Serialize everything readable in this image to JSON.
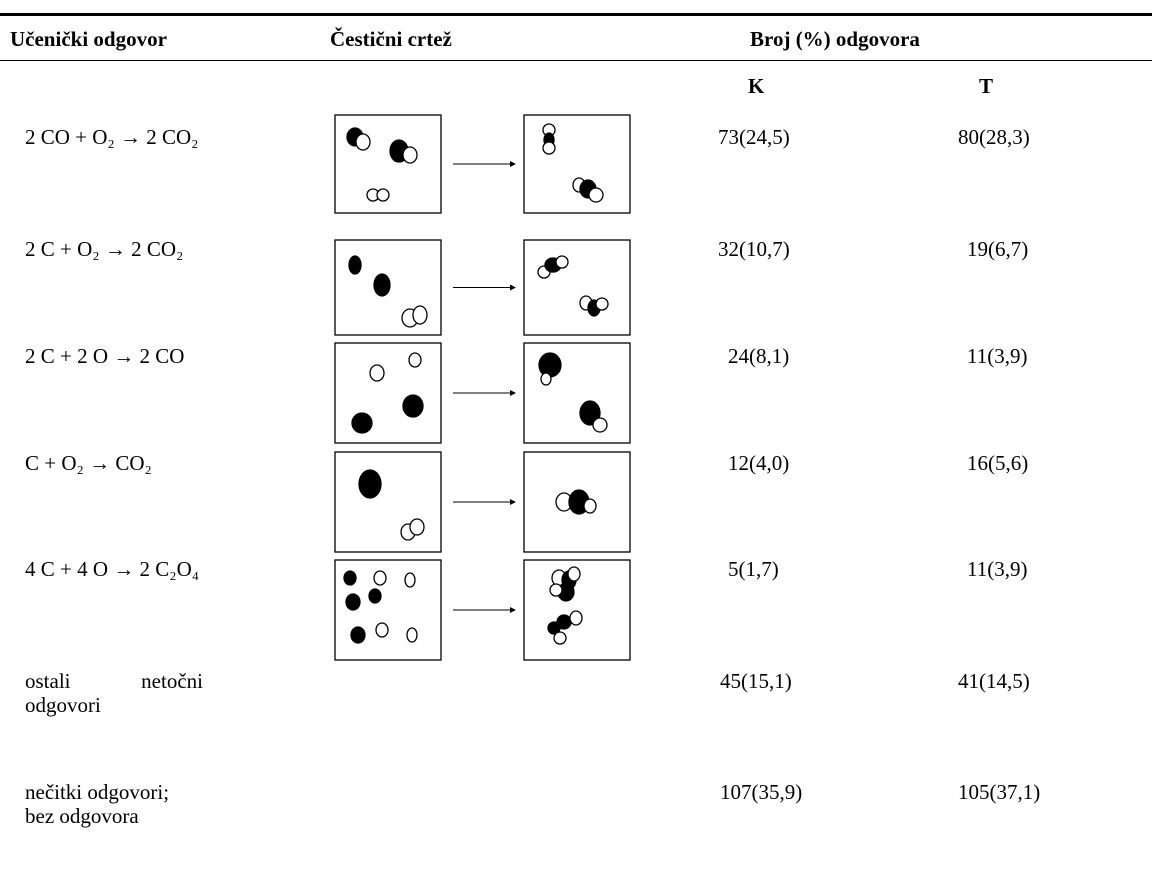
{
  "table": {
    "header": [
      "Učenički odgovor",
      "Čestični crtež",
      "Broj (%) odgovora"
    ],
    "subheader": [
      "K",
      "T"
    ],
    "rows": [
      {
        "answer": "2 CO + O₂ → 2 CO₂",
        "k": "73(24,5)",
        "t": "80(28,3)"
      },
      {
        "answer": "2 C + O₂ → 2 CO₂",
        "k": "32(10,7)",
        "t": "19(6,7)"
      },
      {
        "answer": "2 C + 2 O → 2 CO",
        "k": "24(8,1)",
        "t": "11(3,9)"
      },
      {
        "answer": "C + O₂ → CO₂",
        "k": "12(4,0)",
        "t": "16(5,6)"
      },
      {
        "answer": "4 C + 4 O → 2 C₂O₄",
        "k": "5(1,7)",
        "t": "11(3,9)"
      },
      {
        "answer": "ostali netočni odgovori",
        "k": "45(15,1)",
        "t": "41(14,5)"
      },
      {
        "answer": "nečitki odgovori; bez odgovora",
        "k": "107(35,9)",
        "t": "105(37,1)"
      }
    ]
  }
}
